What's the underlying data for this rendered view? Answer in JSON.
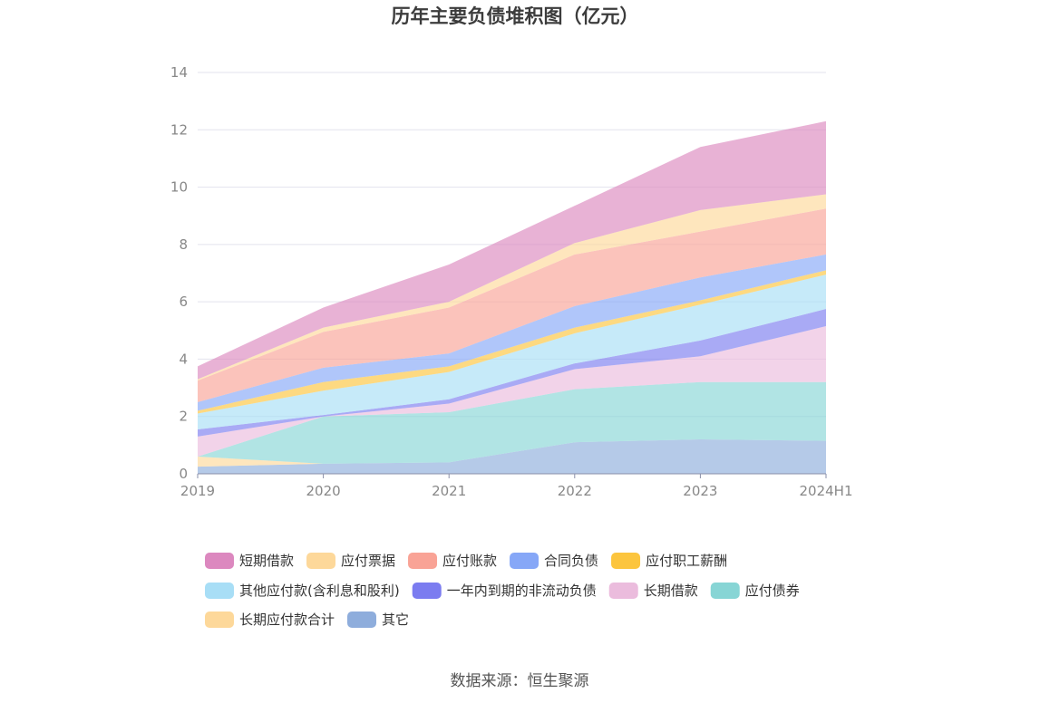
{
  "chart_data": {
    "type": "area",
    "stacked": true,
    "title": "历年主要负债堆积图（亿元）",
    "xlabel": "",
    "ylabel": "",
    "x": [
      "2019",
      "2020",
      "2021",
      "2022",
      "2023",
      "2024H1"
    ],
    "ylim": [
      0,
      14
    ],
    "yticks": [
      0,
      2,
      4,
      6,
      8,
      10,
      12,
      14
    ],
    "grid": true,
    "legend_position": "bottom",
    "series": [
      {
        "name": "其它",
        "color": "#8eaddc",
        "values": [
          0.25,
          0.35,
          0.4,
          1.1,
          1.2,
          1.15
        ]
      },
      {
        "name": "长期应付款合计",
        "color": "#fdd89a",
        "values": [
          0.35,
          0.0,
          0.0,
          0.0,
          0.0,
          0.0
        ]
      },
      {
        "name": "应付债券",
        "color": "#87d5d5",
        "values": [
          0.0,
          1.65,
          1.75,
          1.85,
          2.0,
          2.05
        ]
      },
      {
        "name": "长期借款",
        "color": "#ebbcdd",
        "values": [
          0.7,
          0.0,
          0.3,
          0.7,
          0.9,
          1.95
        ]
      },
      {
        "name": "一年内到期的非流动负债",
        "color": "#7b7cf0",
        "values": [
          0.25,
          0.05,
          0.15,
          0.2,
          0.55,
          0.6
        ]
      },
      {
        "name": "其他应付款(含利息和股利)",
        "color": "#a8def6",
        "values": [
          0.55,
          0.85,
          0.95,
          1.05,
          1.25,
          1.2
        ]
      },
      {
        "name": "应付职工薪酬",
        "color": "#fcc53e",
        "values": [
          0.1,
          0.3,
          0.2,
          0.2,
          0.15,
          0.15
        ]
      },
      {
        "name": "合同负债",
        "color": "#86a7f7",
        "values": [
          0.3,
          0.5,
          0.45,
          0.75,
          0.8,
          0.55
        ]
      },
      {
        "name": "应付账款",
        "color": "#f9a396",
        "values": [
          0.75,
          1.25,
          1.6,
          1.8,
          1.6,
          1.6
        ]
      },
      {
        "name": "应付票据",
        "color": "#fdd89a",
        "values": [
          0.05,
          0.15,
          0.2,
          0.4,
          0.75,
          0.5
        ]
      },
      {
        "name": "短期借款",
        "color": "#dc88bf",
        "values": [
          0.45,
          0.7,
          1.3,
          1.3,
          2.2,
          2.55
        ]
      }
    ],
    "legend_order": [
      "短期借款",
      "应付票据",
      "应付账款",
      "合同负债",
      "应付职工薪酬",
      "其他应付款(含利息和股利)",
      "一年内到期的非流动负债",
      "长期借款",
      "应付债券",
      "长期应付款合计",
      "其它"
    ]
  },
  "source": "数据来源：恒生聚源"
}
